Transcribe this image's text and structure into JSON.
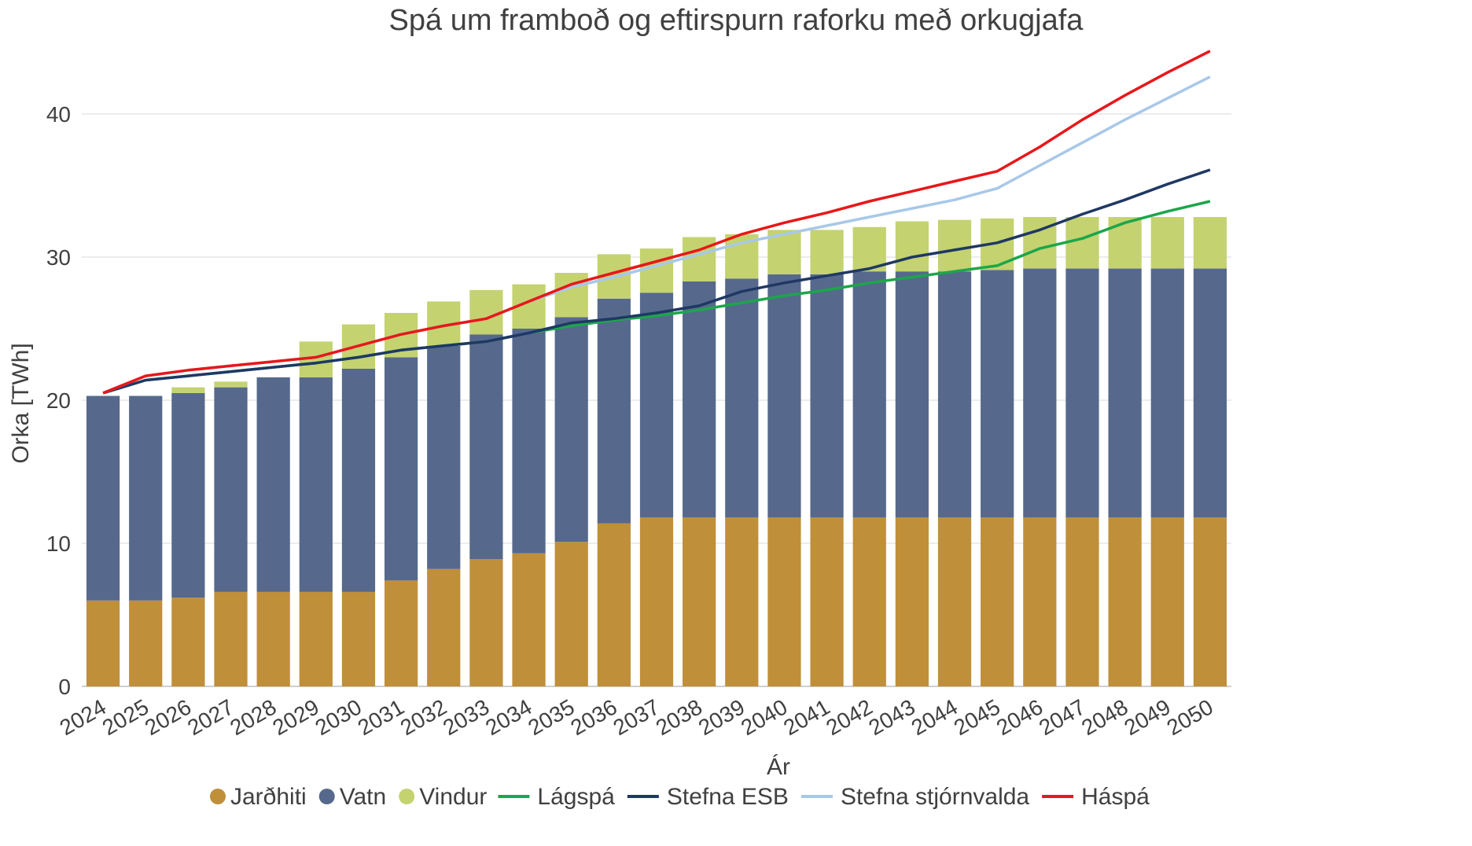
{
  "chart_data": {
    "type": "bar",
    "stacked": true,
    "title": "Spá um framboð og eftirspurn raforku með orkugjafa",
    "xlabel": "Ár",
    "ylabel": "Orka [TWh]",
    "ylim": [
      0,
      45
    ],
    "yticks": [
      0,
      10,
      20,
      30,
      40
    ],
    "grid": true,
    "legend_position": "bottom",
    "categories": [
      "2024",
      "2025",
      "2026",
      "2027",
      "2028",
      "2029",
      "2030",
      "2031",
      "2032",
      "2033",
      "2034",
      "2035",
      "2036",
      "2037",
      "2038",
      "2039",
      "2040",
      "2041",
      "2042",
      "2043",
      "2044",
      "2045",
      "2046",
      "2047",
      "2048",
      "2049",
      "2050"
    ],
    "bar_series": [
      {
        "name": "Jarðhiti",
        "color": "#BF8F3A",
        "values": [
          6.0,
          6.0,
          6.2,
          6.6,
          6.6,
          6.6,
          6.6,
          7.4,
          8.2,
          8.9,
          9.3,
          10.1,
          11.4,
          11.8,
          11.8,
          11.8,
          11.8,
          11.8,
          11.8,
          11.8,
          11.8,
          11.8,
          11.8,
          11.8,
          11.8,
          11.8,
          11.8
        ]
      },
      {
        "name": "Vatn",
        "color": "#56698C",
        "values": [
          14.3,
          14.3,
          14.3,
          14.3,
          15.0,
          15.0,
          15.6,
          15.6,
          15.6,
          15.7,
          15.7,
          15.7,
          15.7,
          15.7,
          16.5,
          16.7,
          17.0,
          17.0,
          17.2,
          17.2,
          17.2,
          17.3,
          17.4,
          17.4,
          17.4,
          17.4,
          17.4
        ]
      },
      {
        "name": "Vindur",
        "color": "#C4D270",
        "values": [
          0.0,
          0.0,
          0.4,
          0.4,
          0.0,
          2.5,
          3.1,
          3.1,
          3.1,
          3.1,
          3.1,
          3.1,
          3.1,
          3.1,
          3.1,
          3.1,
          3.1,
          3.1,
          3.1,
          3.5,
          3.6,
          3.6,
          3.6,
          3.6,
          3.6,
          3.6,
          3.6
        ]
      }
    ],
    "line_series": [
      {
        "name": "Lágspá",
        "color": "#1CA64A",
        "values": [
          20.5,
          21.4,
          21.7,
          22.0,
          22.3,
          22.6,
          23.0,
          23.5,
          23.8,
          24.1,
          24.7,
          25.2,
          25.6,
          25.9,
          26.3,
          26.8,
          27.3,
          27.7,
          28.2,
          28.6,
          29.0,
          29.4,
          30.6,
          31.3,
          32.4,
          33.2,
          33.9
        ]
      },
      {
        "name": "Stefna ESB",
        "color": "#1F3864",
        "values": [
          20.5,
          21.4,
          21.7,
          22.0,
          22.3,
          22.6,
          23.0,
          23.5,
          23.8,
          24.1,
          24.7,
          25.4,
          25.7,
          26.1,
          26.6,
          27.6,
          28.2,
          28.7,
          29.2,
          30.0,
          30.5,
          31.0,
          31.9,
          33.0,
          34.0,
          35.1,
          36.1
        ]
      },
      {
        "name": "Stefna stjórnvalda",
        "color": "#A8C8E8",
        "values": [
          20.5,
          21.7,
          22.1,
          22.4,
          22.7,
          23.0,
          23.8,
          24.6,
          25.2,
          25.7,
          26.9,
          27.9,
          28.6,
          29.4,
          30.2,
          31.0,
          31.6,
          32.2,
          32.8,
          33.4,
          34.0,
          34.8,
          36.4,
          38.0,
          39.6,
          41.1,
          42.6
        ]
      },
      {
        "name": "Háspá",
        "color": "#E8171A",
        "values": [
          20.5,
          21.7,
          22.1,
          22.4,
          22.7,
          23.0,
          23.8,
          24.6,
          25.2,
          25.7,
          26.9,
          28.1,
          28.9,
          29.7,
          30.5,
          31.6,
          32.4,
          33.1,
          33.9,
          34.6,
          35.3,
          36.0,
          37.7,
          39.6,
          41.3,
          42.9,
          44.4
        ]
      }
    ]
  }
}
